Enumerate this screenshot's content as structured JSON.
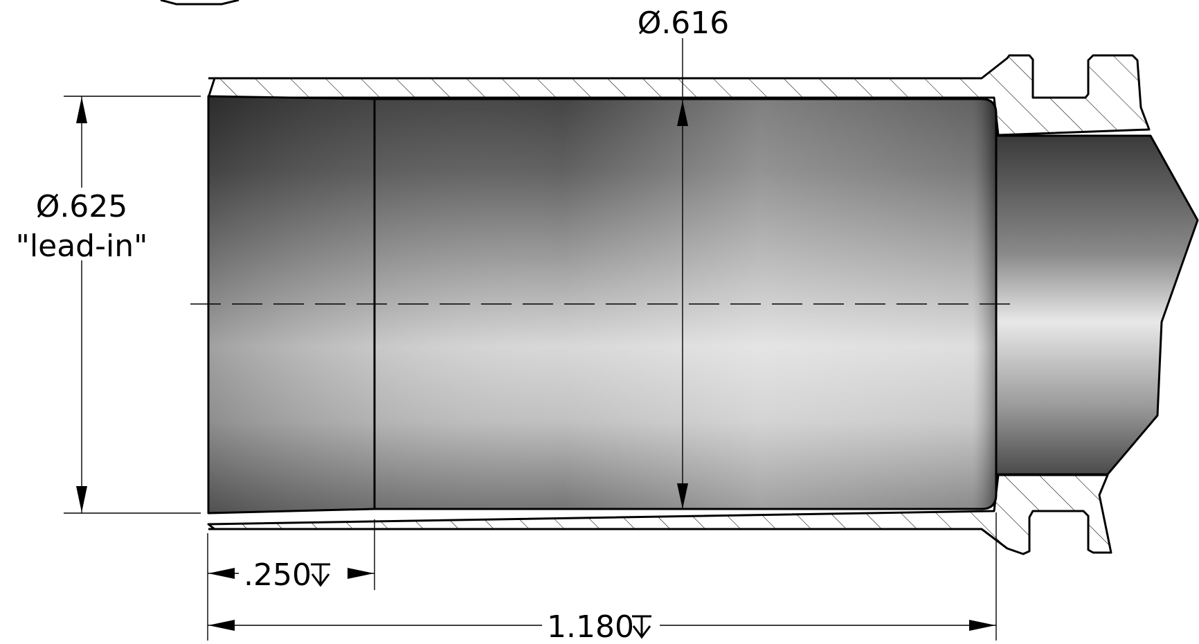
{
  "drawing": {
    "type": "cross-section of bored part with rifle-style extractor groove",
    "colors": {
      "outline": "#000000",
      "bore_dark": "#3c3c3c",
      "bore_light": "#f4f4f4",
      "background": "#ffffff"
    }
  },
  "dimensions": {
    "bore_diameter": {
      "text": "Ø.616"
    },
    "lead_in_diameter": {
      "text": "Ø.625",
      "note": "\"lead-in\""
    },
    "lead_in_depth": {
      "text": ".250",
      "symbol": "depth-symbol"
    },
    "bore_depth": {
      "text": "1.180",
      "symbol": "depth-symbol"
    }
  }
}
